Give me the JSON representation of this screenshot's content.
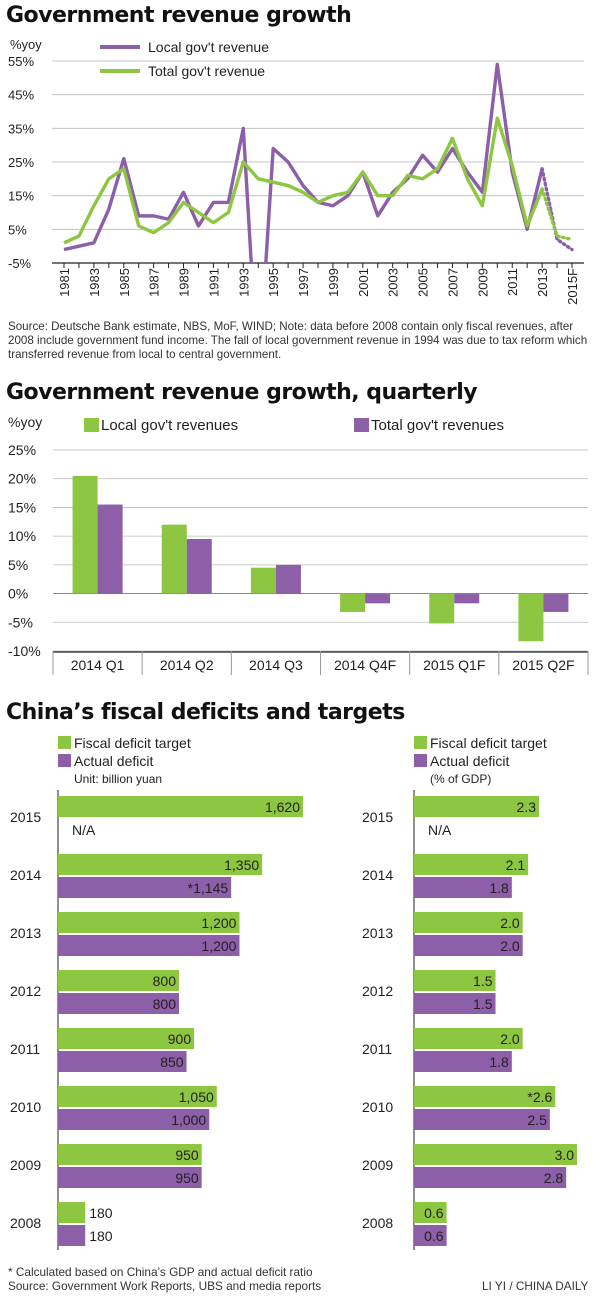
{
  "chart_data": [
    {
      "type": "line",
      "title": "Government revenue growth",
      "ylabel": "%yoy",
      "ylim": [
        -5,
        55
      ],
      "yticks": [
        "55%",
        "45%",
        "35%",
        "25%",
        "15%",
        "5%",
        "-5%"
      ],
      "x_labels": [
        "1981",
        "1983",
        "1985",
        "1987",
        "1989",
        "1991",
        "1993",
        "1995",
        "1997",
        "1999",
        "2001",
        "2003",
        "2005",
        "2007",
        "2009",
        "2011",
        "2013",
        "2015F"
      ],
      "x": [
        "1981",
        "1982",
        "1983",
        "1984",
        "1985",
        "1986",
        "1987",
        "1988",
        "1989",
        "1990",
        "1991",
        "1992",
        "1993",
        "1994",
        "1995",
        "1996",
        "1997",
        "1998",
        "1999",
        "2000",
        "2001",
        "2002",
        "2003",
        "2004",
        "2005",
        "2006",
        "2007",
        "2008",
        "2009",
        "2010",
        "2011",
        "2012",
        "2013",
        "2014F",
        "2015F"
      ],
      "series": [
        {
          "name": "Local gov't revenue",
          "color": "#8c5fa8",
          "values": [
            -1,
            0,
            1,
            11,
            26,
            9,
            9,
            8,
            16,
            6,
            13,
            13,
            35,
            -40,
            29,
            25,
            18,
            13,
            12,
            15,
            22,
            9,
            16,
            20,
            27,
            22,
            29,
            22,
            16,
            54,
            22,
            5,
            23,
            2,
            -1
          ],
          "projected_from": 32
        },
        {
          "name": "Total gov't revenue",
          "color": "#8dc641",
          "values": [
            1,
            3,
            12,
            20,
            23,
            6,
            4,
            7,
            13,
            10,
            7,
            10,
            25,
            20,
            19,
            18,
            16,
            13,
            15,
            16,
            22,
            15,
            15,
            21,
            20,
            23,
            32,
            20,
            12,
            38,
            24,
            6,
            17,
            3,
            2
          ],
          "projected_from": 32
        }
      ],
      "source_note": "Source: Deutsche Bank estimate, NBS, MoF, WIND; Note: data before 2008 contain only fiscal revenues, after 2008 include government fund income. The fall of local government revenue in 1994 was due to tax reform which transferred revenue from local to central government."
    },
    {
      "type": "bar",
      "title": "Government revenue growth, quarterly",
      "ylabel": "%yoy",
      "ylim": [
        -10,
        25
      ],
      "yticks": [
        "25%",
        "20%",
        "15%",
        "10%",
        "5%",
        "0%",
        "-5%",
        "-10%"
      ],
      "categories": [
        "2014 Q1",
        "2014 Q2",
        "2014 Q3",
        "2014 Q4F",
        "2015 Q1F",
        "2015 Q2F"
      ],
      "series": [
        {
          "name": "Local gov't revenues",
          "color": "#8dc641",
          "values": [
            20.5,
            12,
            4.5,
            -3.2,
            -5.2,
            -8.3
          ]
        },
        {
          "name": "Total gov't revenues",
          "color": "#8c5fa8",
          "values": [
            15.5,
            9.5,
            5,
            -1.7,
            -1.7,
            -3.2
          ]
        }
      ]
    },
    {
      "type": "bar",
      "orientation": "horizontal",
      "title": "China’s fiscal deficits and targets",
      "unit": "Unit: billion yuan",
      "categories": [
        "2015",
        "2014",
        "2013",
        "2012",
        "2011",
        "2010",
        "2009",
        "2008"
      ],
      "series": [
        {
          "name": "Fiscal deficit target",
          "color": "#8dc641",
          "values": [
            1620,
            1350,
            1200,
            800,
            900,
            1050,
            950,
            180
          ],
          "labels": [
            "1,620",
            "1,350",
            "1,200",
            "800",
            "900",
            "1,050",
            "950",
            "180"
          ]
        },
        {
          "name": "Actual deficit",
          "color": "#8c5fa8",
          "values": [
            null,
            1145,
            1200,
            800,
            850,
            1000,
            950,
            180
          ],
          "labels": [
            "N/A",
            "*1,145",
            "1,200",
            "800",
            "850",
            "1,000",
            "950",
            "180"
          ]
        }
      ]
    },
    {
      "type": "bar",
      "orientation": "horizontal",
      "unit": "(% of GDP)",
      "categories": [
        "2015",
        "2014",
        "2013",
        "2012",
        "2011",
        "2010",
        "2009",
        "2008"
      ],
      "series": [
        {
          "name": "Fiscal deficit target",
          "color": "#8dc641",
          "values": [
            2.3,
            2.1,
            2.0,
            1.5,
            2.0,
            2.6,
            3.0,
            0.6
          ],
          "labels": [
            "2.3",
            "2.1",
            "2.0",
            "1.5",
            "2.0",
            "*2.6",
            "3.0",
            "0.6"
          ]
        },
        {
          "name": "Actual deficit",
          "color": "#8c5fa8",
          "values": [
            null,
            1.8,
            2.0,
            1.5,
            1.8,
            2.5,
            2.8,
            0.6
          ],
          "labels": [
            "N/A",
            "1.8",
            "2.0",
            "1.5",
            "1.8",
            "2.5",
            "2.8",
            "0.6"
          ]
        }
      ]
    }
  ],
  "footnote": "* Calculated based on China’s GDP and actual deficit ratio",
  "source": "Source: Government Work Reports, UBS and media reports",
  "credit": "LI YI / CHINA DAILY"
}
